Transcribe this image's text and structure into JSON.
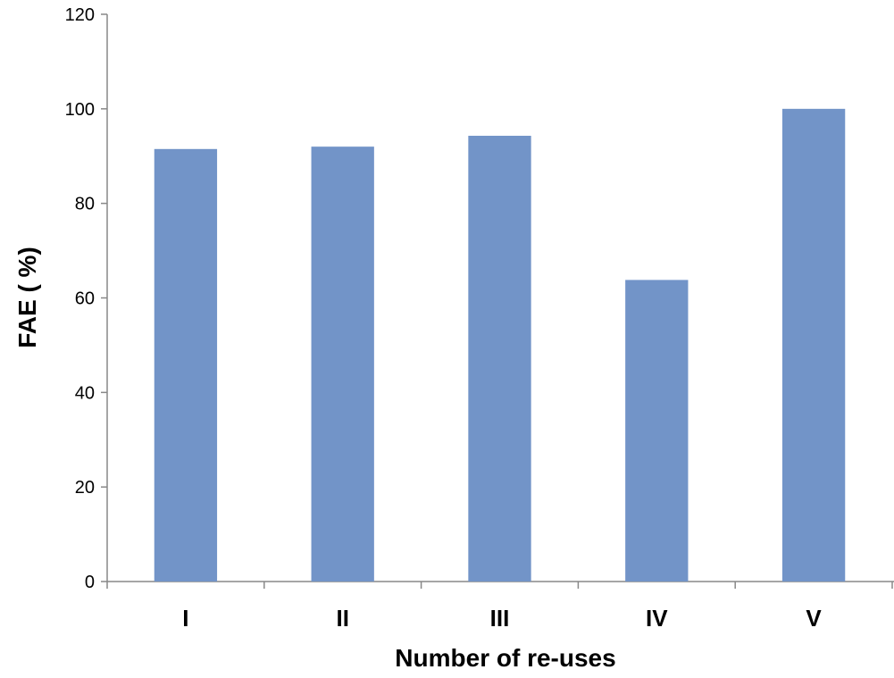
{
  "chart_data": {
    "type": "bar",
    "title": "",
    "xlabel": "Number of re-uses",
    "ylabel": "FAE ( %)",
    "categories": [
      "I",
      "II",
      "III",
      "IV",
      "V"
    ],
    "series": [
      {
        "values": [
          91.5,
          92.0,
          94.3,
          63.8,
          100.0
        ],
        "color": "#7294C8"
      }
    ],
    "ylim": [
      0,
      120
    ],
    "yticks": [
      0,
      20,
      40,
      60,
      80,
      100,
      120
    ],
    "grid": false,
    "legend": "none"
  }
}
